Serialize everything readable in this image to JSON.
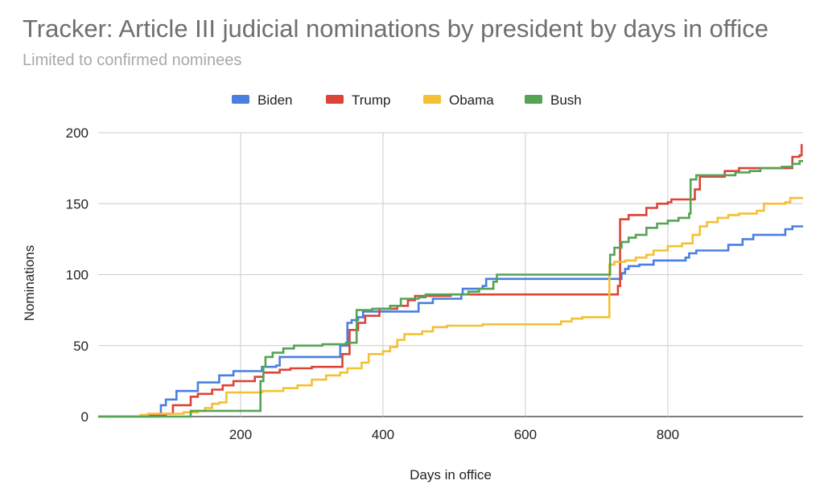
{
  "header": {
    "title": "Tracker: Article III judicial nominations by president by days in office",
    "subtitle": "Limited to confirmed nominees"
  },
  "chart_data": {
    "type": "line",
    "title": "Tracker: Article III judicial nominations by president by days in office",
    "subtitle": "Limited to confirmed nominees",
    "xlabel": "Days in office",
    "ylabel": "Nominations",
    "xlim": [
      0,
      990
    ],
    "ylim": [
      0,
      200
    ],
    "xticks": [
      200,
      400,
      600,
      800
    ],
    "yticks": [
      0,
      50,
      100,
      150,
      200
    ],
    "grid": true,
    "legend_position": "top",
    "step": true,
    "series": [
      {
        "name": "Biden",
        "color": "#4a7fe0",
        "points": [
          [
            0,
            0
          ],
          [
            85,
            1
          ],
          [
            88,
            8
          ],
          [
            95,
            12
          ],
          [
            105,
            12
          ],
          [
            110,
            18
          ],
          [
            135,
            18
          ],
          [
            140,
            24
          ],
          [
            165,
            24
          ],
          [
            170,
            29
          ],
          [
            185,
            29
          ],
          [
            190,
            32
          ],
          [
            225,
            32
          ],
          [
            230,
            35
          ],
          [
            250,
            36
          ],
          [
            255,
            42
          ],
          [
            335,
            42
          ],
          [
            340,
            50
          ],
          [
            345,
            50
          ],
          [
            350,
            66
          ],
          [
            356,
            68
          ],
          [
            365,
            70
          ],
          [
            372,
            74
          ],
          [
            440,
            74
          ],
          [
            450,
            80
          ],
          [
            470,
            83
          ],
          [
            510,
            86
          ],
          [
            512,
            90
          ],
          [
            540,
            92
          ],
          [
            545,
            97
          ],
          [
            570,
            97
          ],
          [
            730,
            97
          ],
          [
            735,
            101
          ],
          [
            740,
            104
          ],
          [
            745,
            106
          ],
          [
            760,
            107
          ],
          [
            780,
            110
          ],
          [
            800,
            110
          ],
          [
            825,
            112
          ],
          [
            830,
            115
          ],
          [
            840,
            117
          ],
          [
            880,
            117
          ],
          [
            885,
            121
          ],
          [
            900,
            121
          ],
          [
            905,
            125
          ],
          [
            915,
            125
          ],
          [
            920,
            128
          ],
          [
            960,
            128
          ],
          [
            965,
            132
          ],
          [
            975,
            134
          ],
          [
            990,
            134
          ]
        ]
      },
      {
        "name": "Trump",
        "color": "#db4437",
        "points": [
          [
            0,
            0
          ],
          [
            60,
            1
          ],
          [
            95,
            2
          ],
          [
            105,
            8
          ],
          [
            125,
            8
          ],
          [
            130,
            14
          ],
          [
            140,
            16
          ],
          [
            160,
            19
          ],
          [
            175,
            22
          ],
          [
            190,
            25
          ],
          [
            215,
            25
          ],
          [
            220,
            28
          ],
          [
            228,
            28
          ],
          [
            232,
            31
          ],
          [
            255,
            33
          ],
          [
            270,
            34
          ],
          [
            300,
            35
          ],
          [
            338,
            35
          ],
          [
            343,
            44
          ],
          [
            350,
            44
          ],
          [
            353,
            61
          ],
          [
            360,
            61
          ],
          [
            365,
            66
          ],
          [
            375,
            71
          ],
          [
            395,
            76
          ],
          [
            420,
            78
          ],
          [
            435,
            82
          ],
          [
            445,
            85
          ],
          [
            480,
            85
          ],
          [
            495,
            86
          ],
          [
            530,
            86
          ],
          [
            720,
            86
          ],
          [
            725,
            86
          ],
          [
            730,
            92
          ],
          [
            733,
            139
          ],
          [
            745,
            142
          ],
          [
            760,
            142
          ],
          [
            770,
            147
          ],
          [
            785,
            150
          ],
          [
            800,
            151
          ],
          [
            805,
            153
          ],
          [
            835,
            153
          ],
          [
            838,
            160
          ],
          [
            845,
            169
          ],
          [
            880,
            173
          ],
          [
            900,
            175
          ],
          [
            940,
            175
          ],
          [
            970,
            175
          ],
          [
            975,
            183
          ],
          [
            985,
            184
          ],
          [
            988,
            192
          ]
        ]
      },
      {
        "name": "Obama",
        "color": "#f4c034",
        "points": [
          [
            0,
            0
          ],
          [
            60,
            1
          ],
          [
            70,
            2
          ],
          [
            115,
            2
          ],
          [
            120,
            3
          ],
          [
            140,
            4
          ],
          [
            150,
            6
          ],
          [
            160,
            9
          ],
          [
            170,
            10
          ],
          [
            180,
            17
          ],
          [
            210,
            17
          ],
          [
            225,
            17
          ],
          [
            230,
            18
          ],
          [
            250,
            18
          ],
          [
            260,
            20
          ],
          [
            280,
            22
          ],
          [
            300,
            26
          ],
          [
            320,
            29
          ],
          [
            340,
            31
          ],
          [
            350,
            34
          ],
          [
            370,
            38
          ],
          [
            380,
            44
          ],
          [
            400,
            46
          ],
          [
            410,
            49
          ],
          [
            420,
            54
          ],
          [
            430,
            58
          ],
          [
            445,
            58
          ],
          [
            455,
            60
          ],
          [
            470,
            63
          ],
          [
            490,
            64
          ],
          [
            520,
            64
          ],
          [
            540,
            65
          ],
          [
            640,
            65
          ],
          [
            650,
            67
          ],
          [
            665,
            69
          ],
          [
            680,
            70
          ],
          [
            700,
            70
          ],
          [
            715,
            70
          ],
          [
            718,
            107
          ],
          [
            725,
            109
          ],
          [
            740,
            110
          ],
          [
            755,
            112
          ],
          [
            770,
            114
          ],
          [
            780,
            117
          ],
          [
            800,
            120
          ],
          [
            820,
            122
          ],
          [
            830,
            122
          ],
          [
            835,
            128
          ],
          [
            845,
            134
          ],
          [
            855,
            137
          ],
          [
            870,
            140
          ],
          [
            885,
            142
          ],
          [
            900,
            143
          ],
          [
            925,
            145
          ],
          [
            935,
            150
          ],
          [
            945,
            150
          ],
          [
            965,
            151
          ],
          [
            972,
            154
          ],
          [
            990,
            154
          ]
        ]
      },
      {
        "name": "Bush",
        "color": "#55a355",
        "points": [
          [
            0,
            0
          ],
          [
            120,
            0
          ],
          [
            130,
            4
          ],
          [
            225,
            4
          ],
          [
            228,
            25
          ],
          [
            232,
            35
          ],
          [
            235,
            42
          ],
          [
            245,
            45
          ],
          [
            260,
            48
          ],
          [
            275,
            50
          ],
          [
            300,
            50
          ],
          [
            315,
            51
          ],
          [
            340,
            51
          ],
          [
            348,
            52
          ],
          [
            355,
            52
          ],
          [
            360,
            52
          ],
          [
            363,
            75
          ],
          [
            370,
            75
          ],
          [
            385,
            76
          ],
          [
            410,
            78
          ],
          [
            425,
            83
          ],
          [
            450,
            84
          ],
          [
            460,
            86
          ],
          [
            480,
            86
          ],
          [
            500,
            86
          ],
          [
            520,
            88
          ],
          [
            535,
            90
          ],
          [
            555,
            95
          ],
          [
            560,
            100
          ],
          [
            600,
            100
          ],
          [
            716,
            100
          ],
          [
            719,
            114
          ],
          [
            725,
            119
          ],
          [
            735,
            123
          ],
          [
            745,
            126
          ],
          [
            755,
            128
          ],
          [
            770,
            133
          ],
          [
            785,
            136
          ],
          [
            800,
            138
          ],
          [
            815,
            140
          ],
          [
            830,
            143
          ],
          [
            832,
            167
          ],
          [
            840,
            170
          ],
          [
            880,
            170
          ],
          [
            895,
            172
          ],
          [
            915,
            173
          ],
          [
            930,
            175
          ],
          [
            960,
            176
          ],
          [
            975,
            178
          ],
          [
            985,
            180
          ],
          [
            990,
            180
          ]
        ]
      }
    ]
  }
}
